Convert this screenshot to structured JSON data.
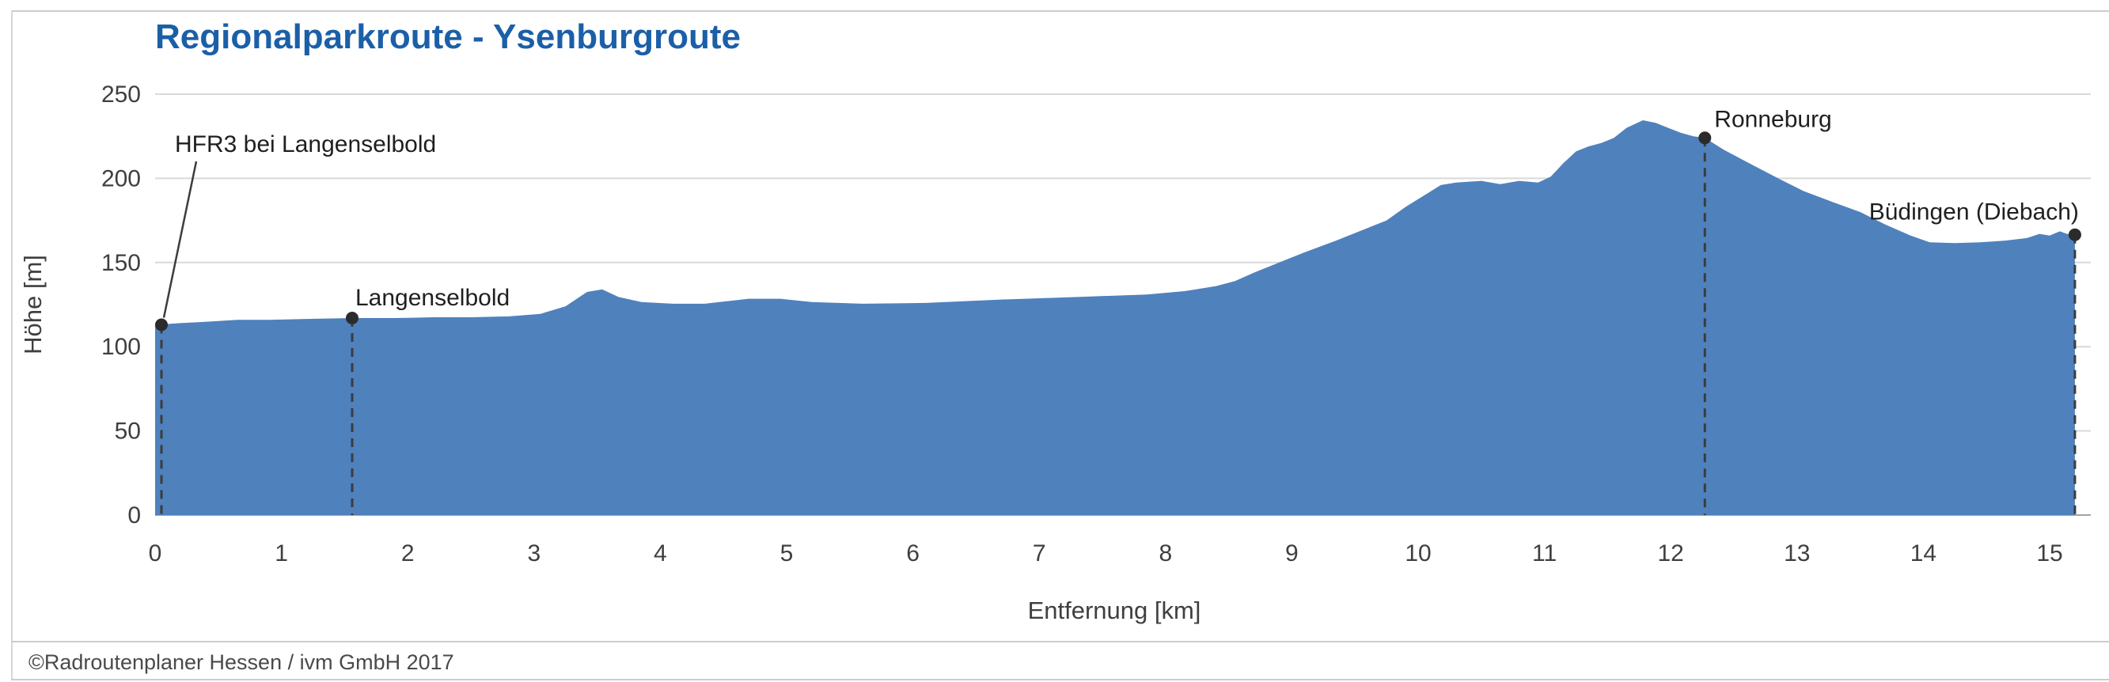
{
  "footer": "©Radroutenplaner Hessen / ivm GmbH 2017",
  "colors": {
    "title_blue": "#1b5fa8",
    "area_fill": "#4f81bd",
    "grid": "#d9d9d9",
    "marker": "#2b2b2b",
    "axis_text": "#3f3f3f"
  },
  "chart_data": {
    "type": "area",
    "title": "Regionalparkroute - Ysenburgroute",
    "xlabel": "Entfernung [km]",
    "ylabel": "Höhe [m]",
    "xlim": [
      0,
      15.5
    ],
    "ylim": [
      0,
      250
    ],
    "x_ticks": [
      0,
      1,
      2,
      3,
      4,
      5,
      6,
      7,
      8,
      9,
      10,
      11,
      12,
      13,
      14,
      15
    ],
    "y_ticks": [
      0,
      50,
      100,
      150,
      200,
      250
    ],
    "grid": "horizontal",
    "legend": "none",
    "area_color": "#4f81bd",
    "profile": [
      [
        0.0,
        113
      ],
      [
        0.2,
        114
      ],
      [
        0.45,
        115
      ],
      [
        0.65,
        116
      ],
      [
        0.9,
        116
      ],
      [
        1.2,
        116.5
      ],
      [
        1.56,
        117
      ],
      [
        1.9,
        117
      ],
      [
        2.2,
        117.5
      ],
      [
        2.5,
        117.5
      ],
      [
        2.8,
        118
      ],
      [
        3.05,
        119.5
      ],
      [
        3.25,
        124
      ],
      [
        3.42,
        132.5
      ],
      [
        3.54,
        134
      ],
      [
        3.67,
        129.5
      ],
      [
        3.85,
        126.5
      ],
      [
        4.1,
        125.5
      ],
      [
        4.35,
        125.5
      ],
      [
        4.7,
        128.5
      ],
      [
        4.95,
        128.5
      ],
      [
        5.2,
        126.5
      ],
      [
        5.6,
        125.5
      ],
      [
        6.1,
        126
      ],
      [
        6.7,
        128
      ],
      [
        7.3,
        129.5
      ],
      [
        7.85,
        131
      ],
      [
        8.15,
        133
      ],
      [
        8.4,
        136
      ],
      [
        8.55,
        139
      ],
      [
        8.7,
        144
      ],
      [
        8.9,
        150
      ],
      [
        9.1,
        156
      ],
      [
        9.35,
        163
      ],
      [
        9.55,
        169
      ],
      [
        9.75,
        175
      ],
      [
        9.9,
        183
      ],
      [
        10.05,
        190
      ],
      [
        10.18,
        196
      ],
      [
        10.3,
        197.5
      ],
      [
        10.5,
        198.5
      ],
      [
        10.65,
        196.5
      ],
      [
        10.8,
        198.5
      ],
      [
        10.95,
        197.5
      ],
      [
        11.05,
        201
      ],
      [
        11.15,
        209
      ],
      [
        11.25,
        216
      ],
      [
        11.35,
        219
      ],
      [
        11.45,
        221
      ],
      [
        11.55,
        224
      ],
      [
        11.65,
        230
      ],
      [
        11.78,
        234.5
      ],
      [
        11.88,
        233
      ],
      [
        11.98,
        230
      ],
      [
        12.08,
        227
      ],
      [
        12.18,
        225
      ],
      [
        12.27,
        224
      ],
      [
        12.42,
        217
      ],
      [
        12.62,
        209
      ],
      [
        12.85,
        200
      ],
      [
        13.05,
        192.5
      ],
      [
        13.28,
        186
      ],
      [
        13.5,
        180
      ],
      [
        13.7,
        172.5
      ],
      [
        13.9,
        166
      ],
      [
        14.05,
        162
      ],
      [
        14.25,
        161.5
      ],
      [
        14.45,
        162
      ],
      [
        14.65,
        163
      ],
      [
        14.82,
        164.5
      ],
      [
        14.92,
        167
      ],
      [
        15.0,
        166
      ],
      [
        15.08,
        168.5
      ],
      [
        15.14,
        167
      ],
      [
        15.2,
        166.5
      ]
    ],
    "markers": [
      {
        "x": 0.05,
        "elevation": 113,
        "label": "HFR3 bei Langenselbold",
        "placement": "leader"
      },
      {
        "x": 1.56,
        "elevation": 117,
        "label": "Langenselbold",
        "placement": "above-start"
      },
      {
        "x": 12.27,
        "elevation": 224,
        "label": "Ronneburg",
        "placement": "above-right"
      },
      {
        "x": 15.2,
        "elevation": 166.5,
        "label": "Büdingen (Diebach)",
        "placement": "above-end"
      }
    ]
  }
}
